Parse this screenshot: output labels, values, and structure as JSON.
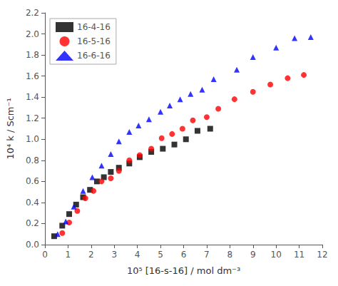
{
  "chart_data": {
    "type": "scatter",
    "xlabel": "10⁵ [16-s-16] / mol dm⁻³",
    "ylabel": "10⁴ k / Scm⁻¹",
    "xlim": [
      0,
      12
    ],
    "ylim": [
      0,
      2.2
    ],
    "xticks": [
      0,
      1,
      2,
      3,
      4,
      5,
      6,
      7,
      8,
      9,
      10,
      11,
      12
    ],
    "yticks": [
      {
        "value": 0,
        "label": "0.0"
      },
      0.2,
      0.4,
      0.6,
      0.8,
      {
        "value": 1,
        "label": "1.0"
      },
      1.2,
      1.4,
      1.6,
      1.8,
      {
        "value": 2,
        "label": "2.0"
      },
      2.2
    ],
    "grid": false,
    "legend": "upper left",
    "series": [
      {
        "name": "16-4-16",
        "color": "#000000",
        "marker": "square",
        "x": [
          0.4,
          0.75,
          1.05,
          1.35,
          1.65,
          1.95,
          2.25,
          2.55,
          2.85,
          3.2,
          3.65,
          4.1,
          4.6,
          5.1,
          5.6,
          6.1,
          6.6,
          7.15
        ],
        "values": [
          0.08,
          0.18,
          0.29,
          0.38,
          0.45,
          0.52,
          0.6,
          0.64,
          0.69,
          0.73,
          0.77,
          0.83,
          0.88,
          0.91,
          0.95,
          1.0,
          1.08,
          1.1
        ]
      },
      {
        "name": "16-5-16",
        "color": "#ff0000",
        "marker": "circle",
        "x": [
          0.75,
          1.05,
          1.4,
          1.75,
          2.1,
          2.45,
          2.85,
          3.2,
          3.65,
          4.1,
          4.6,
          5.05,
          5.5,
          5.95,
          6.4,
          7.0,
          7.5,
          8.2,
          9.0,
          9.75,
          10.5,
          11.2
        ],
        "values": [
          0.11,
          0.21,
          0.32,
          0.44,
          0.51,
          0.6,
          0.63,
          0.7,
          0.8,
          0.85,
          0.91,
          1.01,
          1.05,
          1.1,
          1.18,
          1.21,
          1.29,
          1.38,
          1.45,
          1.52,
          1.58,
          1.61
        ]
      },
      {
        "name": "16-6-16",
        "color": "#0000ff",
        "marker": "triangle",
        "x": [
          0.55,
          0.9,
          1.25,
          1.65,
          2.05,
          2.45,
          2.85,
          3.2,
          3.65,
          4.05,
          4.5,
          5.0,
          5.4,
          5.85,
          6.3,
          6.8,
          7.3,
          8.3,
          9.0,
          10.0,
          10.8,
          11.5
        ],
        "values": [
          0.1,
          0.22,
          0.36,
          0.51,
          0.64,
          0.75,
          0.86,
          0.98,
          1.07,
          1.13,
          1.19,
          1.26,
          1.32,
          1.38,
          1.43,
          1.47,
          1.57,
          1.66,
          1.78,
          1.87,
          1.96,
          1.97
        ]
      }
    ]
  }
}
